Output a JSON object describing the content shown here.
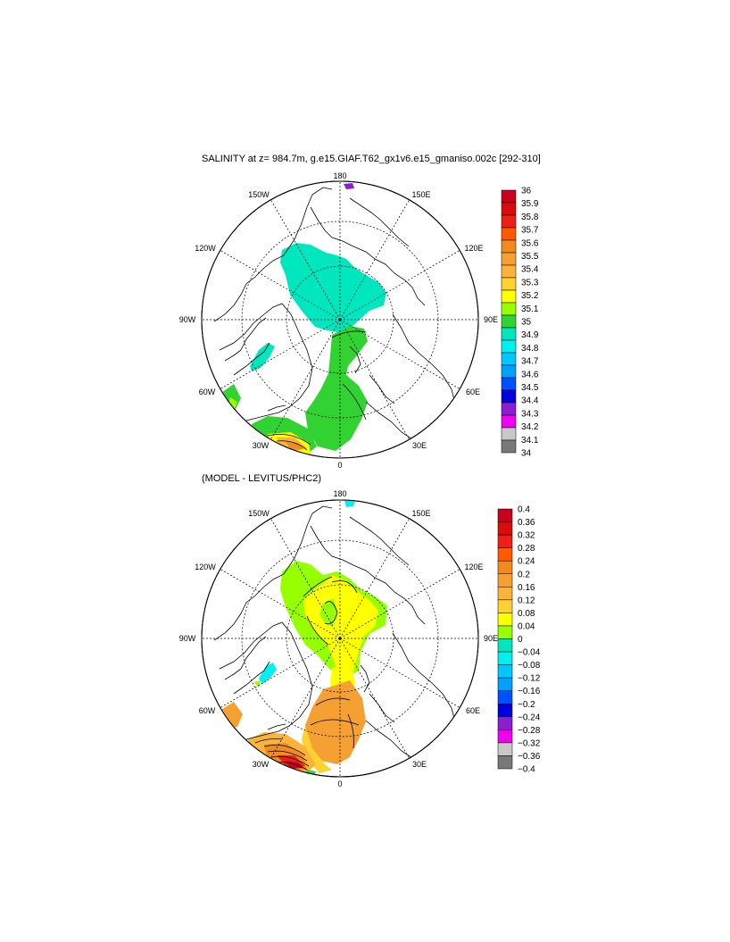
{
  "panels": [
    {
      "title": "SALINITY at z= 984.7m, g.e15.GIAF.T62_gx1v6.e15_gmaniso.002c [292-310]",
      "meridians": {
        "m180": "180",
        "m150W": "150W",
        "m150E": "150E",
        "m120W": "120W",
        "m120E": "120E",
        "m90W": "90W",
        "m90E": "90E",
        "m60W": "60W",
        "m60E": "60E",
        "m30W": "30W",
        "m30E": "30E",
        "m0": "0"
      },
      "colorbar": {
        "levels": [
          "36",
          "35.9",
          "35.8",
          "35.7",
          "35.6",
          "35.5",
          "35.4",
          "35.3",
          "35.2",
          "35.1",
          "35",
          "34.9",
          "34.8",
          "34.7",
          "34.6",
          "34.5",
          "34.4",
          "34.3",
          "34.2",
          "34.1",
          "34"
        ],
        "colors": [
          "#c8001e",
          "#dc0a0a",
          "#f01e14",
          "#ff5a00",
          "#f08c1e",
          "#f5a032",
          "#fab43c",
          "#ffd232",
          "#ffff00",
          "#96ff00",
          "#32d232",
          "#00e6be",
          "#00f0f0",
          "#00c8ff",
          "#00a0ff",
          "#0050ff",
          "#0000dc",
          "#8c1ed2",
          "#f000f0",
          "#c8c8c8",
          "#787878"
        ]
      }
    },
    {
      "title": "(MODEL - LEVITUS/PHC2)",
      "meridians": {
        "m180": "180",
        "m150W": "150W",
        "m150E": "150E",
        "m120W": "120W",
        "m120E": "120E",
        "m90W": "90W",
        "m90E": "90E",
        "m60W": "60W",
        "m60E": "60E",
        "m30W": "30W",
        "m30E": "30E",
        "m0": "0"
      },
      "colorbar": {
        "levels": [
          "0.4",
          "0.36",
          "0.32",
          "0.28",
          "0.24",
          "0.2",
          "0.16",
          "0.12",
          "0.08",
          "0.04",
          "0",
          "−0.04",
          "−0.08",
          "−0.12",
          "−0.16",
          "−0.2",
          "−0.24",
          "−0.28",
          "−0.32",
          "−0.36",
          "−0.4"
        ],
        "colors": [
          "#c8001e",
          "#dc0a0a",
          "#f01e14",
          "#ff5a00",
          "#f08c1e",
          "#f5a032",
          "#fab43c",
          "#ffd232",
          "#ffff00",
          "#96ff00",
          "#00e6be",
          "#00f0f0",
          "#00c8ff",
          "#00a0ff",
          "#0050ff",
          "#0000dc",
          "#8c1ed2",
          "#f000f0",
          "#c8c8c8",
          "#787878"
        ]
      }
    }
  ]
}
